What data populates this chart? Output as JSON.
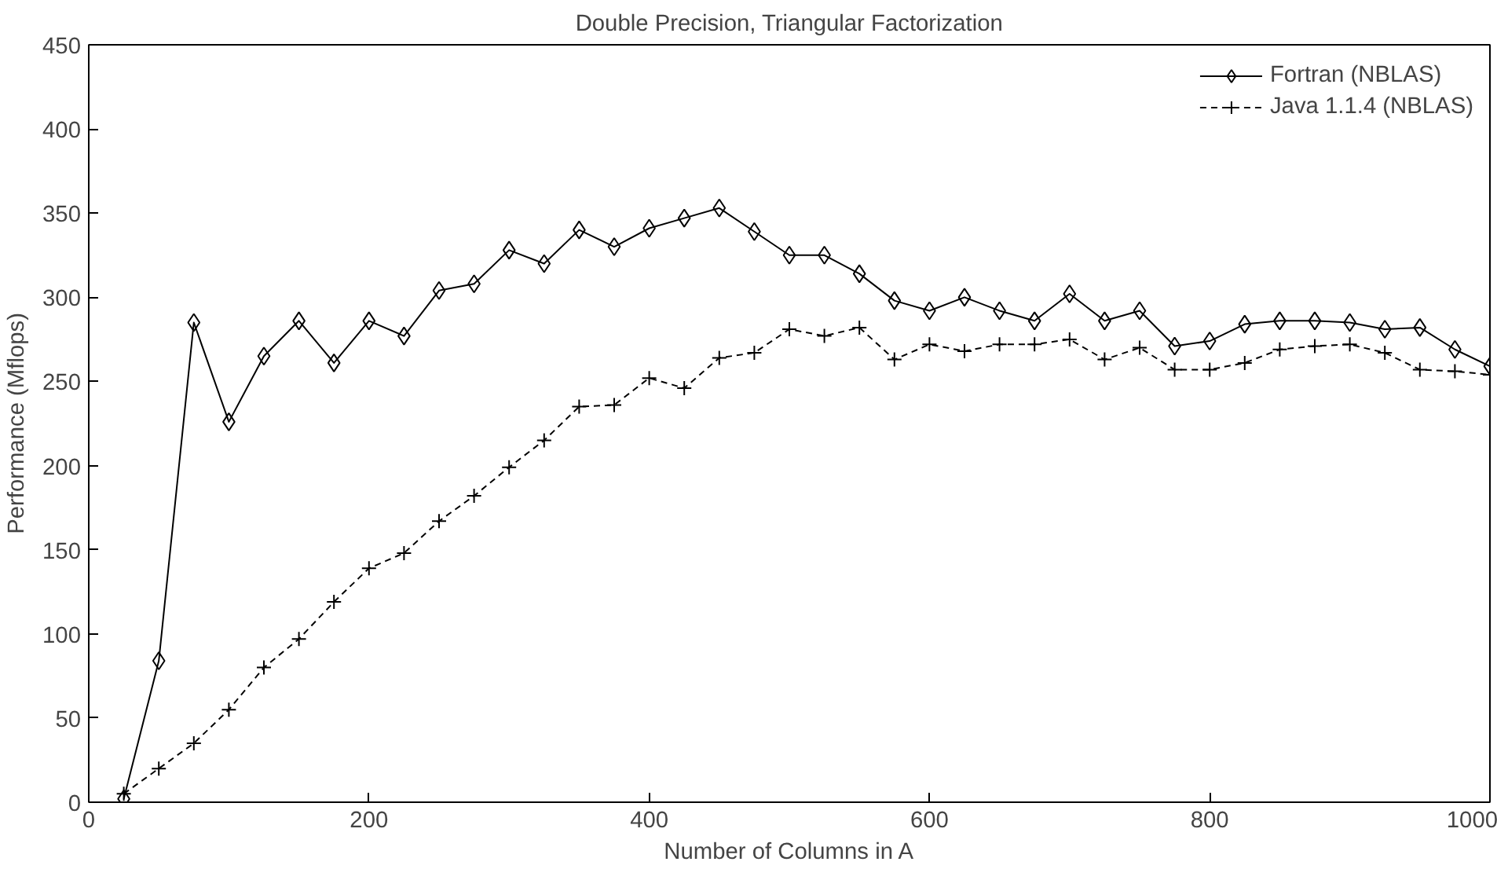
{
  "chart_data": {
    "type": "line",
    "title": "Double Precision, Triangular Factorization",
    "xlabel": "Number of Columns in A",
    "ylabel": "Performance (Mflops)",
    "x": [
      25,
      50,
      75,
      100,
      125,
      150,
      175,
      200,
      225,
      250,
      275,
      300,
      325,
      350,
      375,
      400,
      425,
      450,
      475,
      500,
      525,
      550,
      575,
      600,
      625,
      650,
      675,
      700,
      725,
      750,
      775,
      800,
      825,
      850,
      875,
      900,
      925,
      950,
      975,
      1000
    ],
    "series": [
      {
        "name": "Fortran (NBLAS)",
        "color": "#000000",
        "marker": "diamond",
        "line_style": "solid",
        "values": [
          2,
          84,
          285,
          226,
          265,
          286,
          261,
          286,
          277,
          304,
          308,
          328,
          320,
          340,
          330,
          341,
          347,
          353,
          339,
          325,
          325,
          314,
          298,
          292,
          300,
          292,
          286,
          302,
          286,
          292,
          271,
          274,
          284,
          286,
          286,
          285,
          281,
          282,
          269,
          259
        ]
      },
      {
        "name": "Java 1.1.4 (NBLAS)",
        "color": "#000000",
        "marker": "cross",
        "line_style": "dashed",
        "values": [
          5,
          20,
          35,
          55,
          80,
          97,
          119,
          139,
          148,
          167,
          182,
          199,
          215,
          235,
          236,
          252,
          246,
          264,
          267,
          281,
          277,
          282,
          263,
          272,
          268,
          272,
          272,
          275,
          263,
          270,
          257,
          257,
          261,
          269,
          271,
          272,
          267,
          257,
          256,
          254
        ]
      }
    ],
    "xlim": [
      0,
      1000
    ],
    "ylim": [
      0,
      450
    ],
    "xticks": [
      0,
      200,
      400,
      600,
      800,
      1000
    ],
    "yticks": [
      0,
      50,
      100,
      150,
      200,
      250,
      300,
      350,
      400,
      450
    ],
    "grid": false,
    "legend": "top right"
  }
}
